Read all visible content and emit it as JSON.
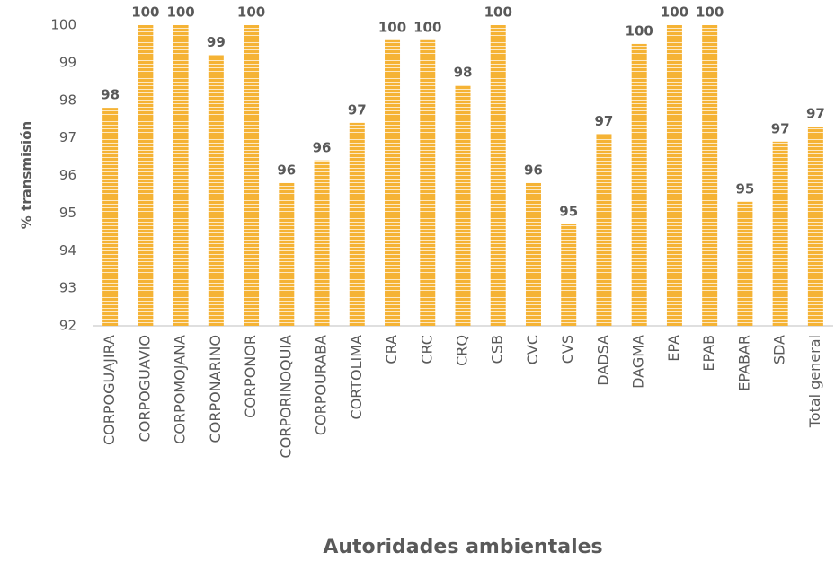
{
  "chart_data": {
    "type": "bar",
    "ylabel": "% transmisión",
    "xlabel": "Autoridades ambientales",
    "categories": [
      "CORPOGUAJIRA",
      "CORPOGUAVIO",
      "CORPOMOJANA",
      "CORPONARINO",
      "CORPONOR",
      "CORPORINOQUIA",
      "CORPOURABA",
      "CORTOLIMA",
      "CRA",
      "CRC",
      "CRQ",
      "CSB",
      "CVC",
      "CVS",
      "DADSA",
      "DAGMA",
      "EPA",
      "EPAB",
      "EPABAR",
      "SDA",
      "Total general"
    ],
    "values": [
      97.8,
      100,
      100,
      99.2,
      100,
      95.8,
      96.4,
      97.4,
      99.6,
      99.6,
      98.4,
      100,
      95.8,
      94.7,
      97.1,
      99.5,
      100,
      100,
      95.3,
      96.9,
      97.3
    ],
    "value_labels": [
      "98",
      "100",
      "100",
      "99",
      "100",
      "96",
      "96",
      "97",
      "100",
      "100",
      "98",
      "100",
      "96",
      "95",
      "97",
      "100",
      "100",
      "100",
      "95",
      "97",
      "97"
    ],
    "color": "#f5b335",
    "ylim": [
      92,
      100
    ],
    "yticks": [
      92,
      93,
      94,
      95,
      96,
      97,
      98,
      99,
      100
    ],
    "grid": false
  }
}
